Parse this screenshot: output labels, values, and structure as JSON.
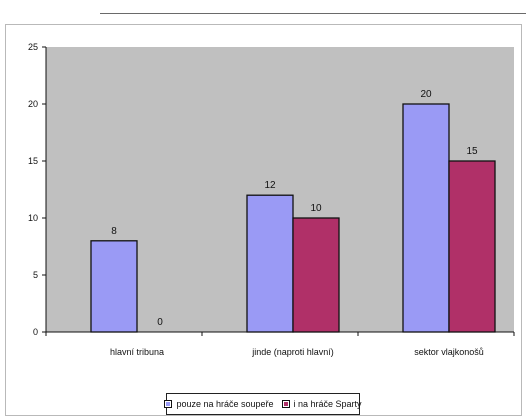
{
  "chart_data": {
    "type": "bar",
    "categories": [
      "hlavní tribuna",
      "jinde (naproti hlavní)",
      "sektor vlajkonošů"
    ],
    "series": [
      {
        "name": "pouze na hráče soupeře",
        "values": [
          8,
          12,
          20
        ],
        "color": "#9a9af5"
      },
      {
        "name": "i na hráče Sparty",
        "values": [
          0,
          10,
          15
        ],
        "color": "#b03068"
      }
    ],
    "y_ticks": [
      0,
      5,
      10,
      15,
      20,
      25
    ],
    "ylim": [
      0,
      25
    ],
    "plot_background": "#c0c0c0",
    "legend_position": "bottom",
    "grid": false
  }
}
